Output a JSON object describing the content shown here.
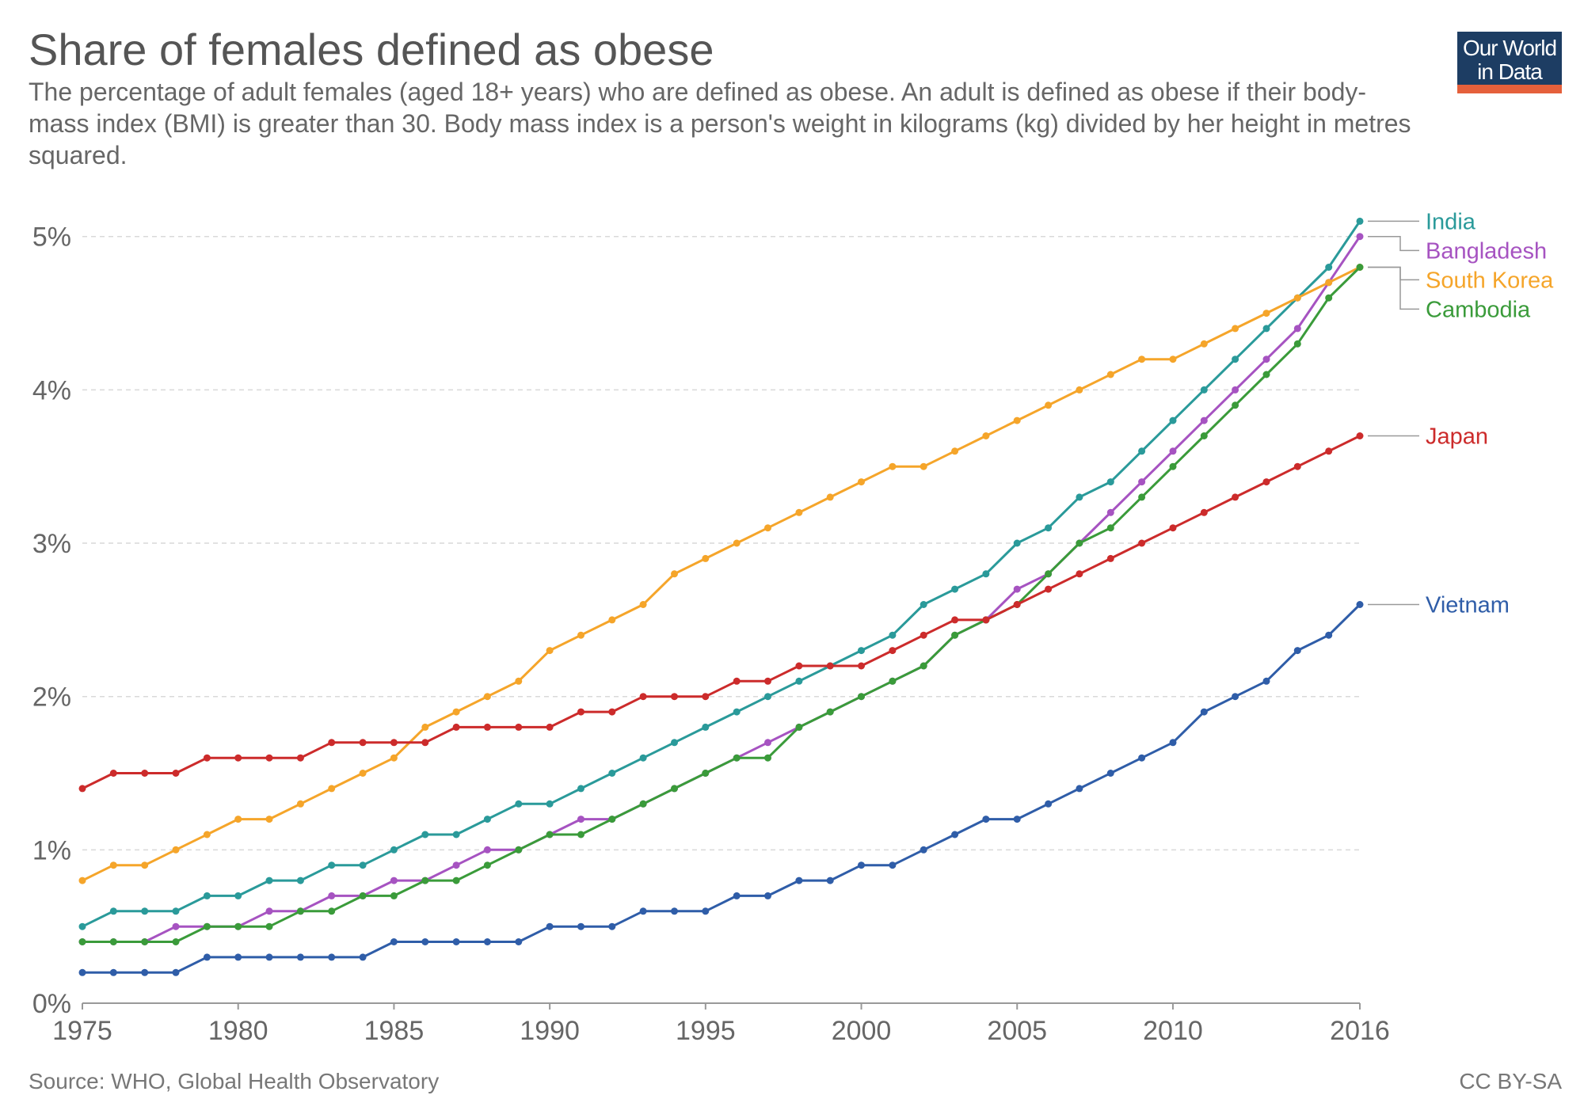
{
  "header": {
    "title": "Share of females defined as obese",
    "subtitle": "The percentage of adult females (aged 18+ years) who are defined as obese. An adult is defined as obese if their body-mass index (BMI) is greater than 30. Body mass index is a person's weight in kilograms (kg) divided by her height in metres squared."
  },
  "logo": {
    "line1": "Our World",
    "line2": "in Data"
  },
  "footer": {
    "source": "Source: WHO, Global Health Observatory",
    "license": "CC BY-SA"
  },
  "chart_data": {
    "type": "line",
    "title": "Share of females defined as obese",
    "x": [
      1975,
      1976,
      1977,
      1978,
      1979,
      1980,
      1981,
      1982,
      1983,
      1984,
      1985,
      1986,
      1987,
      1988,
      1989,
      1990,
      1991,
      1992,
      1993,
      1994,
      1995,
      1996,
      1997,
      1998,
      1999,
      2000,
      2001,
      2002,
      2003,
      2004,
      2005,
      2006,
      2007,
      2008,
      2009,
      2010,
      2011,
      2012,
      2013,
      2014,
      2015,
      2016
    ],
    "xticks": [
      1975,
      1980,
      1985,
      1990,
      1995,
      2000,
      2005,
      2010,
      2016
    ],
    "yticks": [
      0,
      1,
      2,
      3,
      4,
      5
    ],
    "ytick_suffix": "%",
    "ylim": [
      0,
      5.2
    ],
    "grid": true,
    "legend": "right end labels",
    "series": [
      {
        "name": "India",
        "color": "#2a9a9a",
        "values": [
          0.5,
          0.6,
          0.6,
          0.6,
          0.7,
          0.7,
          0.8,
          0.8,
          0.9,
          0.9,
          1.0,
          1.1,
          1.1,
          1.2,
          1.3,
          1.3,
          1.4,
          1.5,
          1.6,
          1.7,
          1.8,
          1.9,
          2.0,
          2.1,
          2.2,
          2.3,
          2.4,
          2.6,
          2.7,
          2.8,
          3.0,
          3.1,
          3.3,
          3.4,
          3.6,
          3.8,
          4.0,
          4.2,
          4.4,
          4.6,
          4.8,
          5.1
        ]
      },
      {
        "name": "Bangladesh",
        "color": "#a653c1",
        "values": [
          0.4,
          0.4,
          0.4,
          0.5,
          0.5,
          0.5,
          0.6,
          0.6,
          0.7,
          0.7,
          0.8,
          0.8,
          0.9,
          1.0,
          1.0,
          1.1,
          1.2,
          1.2,
          1.3,
          1.4,
          1.5,
          1.6,
          1.7,
          1.8,
          1.9,
          2.0,
          2.1,
          2.2,
          2.4,
          2.5,
          2.7,
          2.8,
          3.0,
          3.2,
          3.4,
          3.6,
          3.8,
          4.0,
          4.2,
          4.4,
          4.7,
          5.0
        ]
      },
      {
        "name": "South Korea",
        "color": "#f5a52a",
        "values": [
          0.8,
          0.9,
          0.9,
          1.0,
          1.1,
          1.2,
          1.2,
          1.3,
          1.4,
          1.5,
          1.6,
          1.8,
          1.9,
          2.0,
          2.1,
          2.3,
          2.4,
          2.5,
          2.6,
          2.8,
          2.9,
          3.0,
          3.1,
          3.2,
          3.3,
          3.4,
          3.5,
          3.5,
          3.6,
          3.7,
          3.8,
          3.9,
          4.0,
          4.1,
          4.2,
          4.2,
          4.3,
          4.4,
          4.5,
          4.6,
          4.7,
          4.8
        ]
      },
      {
        "name": "Cambodia",
        "color": "#3a9b3a",
        "values": [
          0.4,
          0.4,
          0.4,
          0.4,
          0.5,
          0.5,
          0.5,
          0.6,
          0.6,
          0.7,
          0.7,
          0.8,
          0.8,
          0.9,
          1.0,
          1.1,
          1.1,
          1.2,
          1.3,
          1.4,
          1.5,
          1.6,
          1.6,
          1.8,
          1.9,
          2.0,
          2.1,
          2.2,
          2.4,
          2.5,
          2.6,
          2.8,
          3.0,
          3.1,
          3.3,
          3.5,
          3.7,
          3.9,
          4.1,
          4.3,
          4.6,
          4.8
        ]
      },
      {
        "name": "Japan",
        "color": "#cc2b2b",
        "values": [
          1.4,
          1.5,
          1.5,
          1.5,
          1.6,
          1.6,
          1.6,
          1.6,
          1.7,
          1.7,
          1.7,
          1.7,
          1.8,
          1.8,
          1.8,
          1.8,
          1.9,
          1.9,
          2.0,
          2.0,
          2.0,
          2.1,
          2.1,
          2.2,
          2.2,
          2.2,
          2.3,
          2.4,
          2.5,
          2.5,
          2.6,
          2.7,
          2.8,
          2.9,
          3.0,
          3.1,
          3.2,
          3.3,
          3.4,
          3.5,
          3.6,
          3.7
        ]
      },
      {
        "name": "Vietnam",
        "color": "#2f5da8",
        "values": [
          0.2,
          0.2,
          0.2,
          0.2,
          0.3,
          0.3,
          0.3,
          0.3,
          0.3,
          0.3,
          0.4,
          0.4,
          0.4,
          0.4,
          0.4,
          0.5,
          0.5,
          0.5,
          0.6,
          0.6,
          0.6,
          0.7,
          0.7,
          0.8,
          0.8,
          0.9,
          0.9,
          1.0,
          1.1,
          1.2,
          1.2,
          1.3,
          1.4,
          1.5,
          1.6,
          1.7,
          1.9,
          2.0,
          2.1,
          2.3,
          2.4,
          2.6
        ]
      }
    ]
  }
}
